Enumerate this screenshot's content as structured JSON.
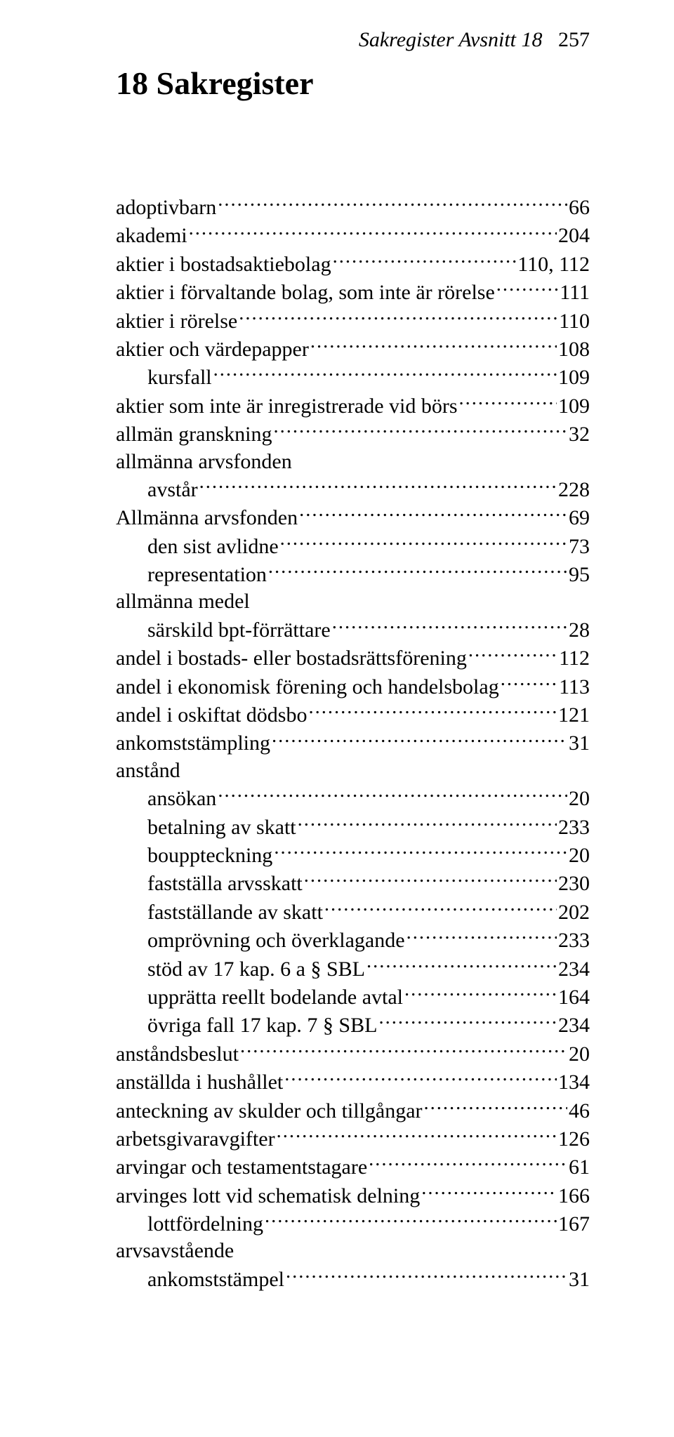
{
  "header": {
    "running_title": "Sakregister Avsnitt 18",
    "page_number": "257"
  },
  "chapter": {
    "title": "18  Sakregister"
  },
  "typography": {
    "font_family": "Times New Roman",
    "body_fontsize_pt": 22,
    "title_fontsize_pt": 34,
    "header_fontsize_pt": 22,
    "text_color": "#000000",
    "background_color": "#ffffff"
  },
  "index_entries": [
    {
      "label": "adoptivbarn",
      "page": "66",
      "indent": 0
    },
    {
      "label": "akademi",
      "page": "204",
      "indent": 0
    },
    {
      "label": "aktier i bostadsaktiebolag",
      "page": "110, 112",
      "indent": 0
    },
    {
      "label": "aktier i förvaltande bolag, som inte är rörelse",
      "page": "111",
      "indent": 0
    },
    {
      "label": "aktier i rörelse",
      "page": "110",
      "indent": 0
    },
    {
      "label": "aktier och värdepapper",
      "page": "108",
      "indent": 0
    },
    {
      "label": "kursfall",
      "page": "109",
      "indent": 1
    },
    {
      "label": "aktier som inte är inregistrerade vid börs",
      "page": "109",
      "indent": 0
    },
    {
      "label": "allmän granskning",
      "page": "32",
      "indent": 0
    },
    {
      "label": "allmänna arvsfonden",
      "page": null,
      "indent": 0
    },
    {
      "label": "avstår",
      "page": "228",
      "indent": 1
    },
    {
      "label": "Allmänna arvsfonden",
      "page": "69",
      "indent": 0
    },
    {
      "label": "den sist avlidne",
      "page": "73",
      "indent": 1
    },
    {
      "label": "representation",
      "page": "95",
      "indent": 1
    },
    {
      "label": "allmänna medel",
      "page": null,
      "indent": 0
    },
    {
      "label": "särskild bpt-förrättare",
      "page": "28",
      "indent": 1
    },
    {
      "label": "andel i bostads- eller bostadsrättsförening",
      "page": "112",
      "indent": 0
    },
    {
      "label": "andel i ekonomisk förening och handelsbolag",
      "page": "113",
      "indent": 0
    },
    {
      "label": "andel i oskiftat dödsbo",
      "page": "121",
      "indent": 0
    },
    {
      "label": "ankomststämpling",
      "page": "31",
      "indent": 0
    },
    {
      "label": "anstånd",
      "page": null,
      "indent": 0
    },
    {
      "label": "ansökan",
      "page": "20",
      "indent": 1
    },
    {
      "label": "betalning av skatt",
      "page": "233",
      "indent": 1
    },
    {
      "label": "bouppteckning",
      "page": "20",
      "indent": 1
    },
    {
      "label": "fastställa arvsskatt",
      "page": "230",
      "indent": 1
    },
    {
      "label": "fastställande av skatt",
      "page": "202",
      "indent": 1
    },
    {
      "label": "omprövning och överklagande",
      "page": "233",
      "indent": 1
    },
    {
      "label": "stöd av 17 kap. 6 a § SBL",
      "page": "234",
      "indent": 1
    },
    {
      "label": "upprätta reellt bodelande avtal",
      "page": "164",
      "indent": 1
    },
    {
      "label": "övriga fall 17 kap. 7 § SBL",
      "page": "234",
      "indent": 1
    },
    {
      "label": "anståndsbeslut",
      "page": "20",
      "indent": 0
    },
    {
      "label": "anställda i hushållet",
      "page": "134",
      "indent": 0
    },
    {
      "label": "anteckning av skulder och tillgångar",
      "page": "46",
      "indent": 0
    },
    {
      "label": "arbetsgivaravgifter",
      "page": "126",
      "indent": 0
    },
    {
      "label": "arvingar och testamentstagare",
      "page": "61",
      "indent": 0
    },
    {
      "label": "arvinges lott vid schematisk delning",
      "page": "166",
      "indent": 0
    },
    {
      "label": "lottfördelning",
      "page": "167",
      "indent": 1
    },
    {
      "label": "arvsavstående",
      "page": null,
      "indent": 0
    },
    {
      "label": "ankomststämpel",
      "page": "31",
      "indent": 1
    }
  ]
}
